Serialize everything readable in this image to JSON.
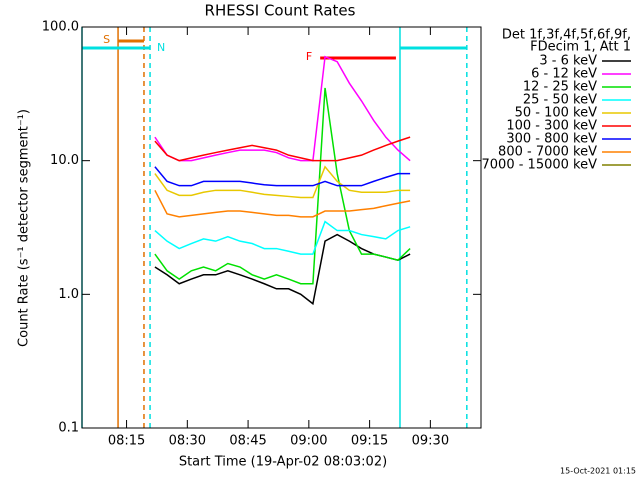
{
  "chart_data": {
    "type": "line",
    "title": "RHESSI Count Rates",
    "x_label": "Start Time (19-Apr-02 08:03:02)",
    "y_label": "Count Rate (s⁻¹ detector segment⁻¹)",
    "footer": "15-Oct-2021 01:15",
    "legend_title": [
      "Det 1f,3f,4f,5f,6f,9f,",
      "FDecim 1, Att 1"
    ],
    "legend": "upper right outside",
    "log_y": true,
    "xlim": [
      4,
      102.5
    ],
    "xticks": [
      {
        "value": 15,
        "label": "08:15"
      },
      {
        "value": 30,
        "label": "08:30"
      },
      {
        "value": 45,
        "label": "08:45"
      },
      {
        "value": 60,
        "label": "09:00"
      },
      {
        "value": 75,
        "label": "09:15"
      },
      {
        "value": 90,
        "label": "09:30"
      }
    ],
    "ylim": [
      0.1,
      100
    ],
    "yticks": [
      {
        "value": 0.1,
        "label": "0.1"
      },
      {
        "value": 1,
        "label": "1.0"
      },
      {
        "value": 10,
        "label": "10.0"
      },
      {
        "value": 100,
        "label": "100.0"
      }
    ],
    "x": [
      22,
      25,
      28,
      31,
      34,
      37,
      40,
      43,
      46,
      49,
      52,
      55,
      58,
      61,
      64,
      67,
      70,
      73,
      76,
      79,
      82,
      85
    ],
    "series": [
      {
        "name": "3 - 6 keV",
        "color": "#000000",
        "values": [
          1.6,
          1.4,
          1.2,
          1.3,
          1.4,
          1.4,
          1.5,
          1.4,
          1.3,
          1.2,
          1.1,
          1.1,
          1.0,
          0.85,
          2.5,
          2.8,
          2.5,
          2.2,
          2.0,
          1.9,
          1.8,
          2.0
        ]
      },
      {
        "name": "6 - 12 keV",
        "color": "#ff00ff",
        "values": [
          15,
          11,
          10,
          10,
          10.5,
          11,
          11.5,
          12,
          12,
          12,
          11.5,
          10.5,
          10,
          10,
          60,
          55,
          38,
          28,
          20,
          15,
          12,
          10
        ]
      },
      {
        "name": "12 - 25 keV",
        "color": "#00e000",
        "values": [
          2.0,
          1.5,
          1.3,
          1.5,
          1.6,
          1.5,
          1.7,
          1.6,
          1.4,
          1.3,
          1.4,
          1.3,
          1.2,
          1.2,
          35,
          8,
          3,
          2,
          2,
          1.9,
          1.8,
          2.2
        ]
      },
      {
        "name": "25 - 50 keV",
        "color": "#00ffff",
        "values": [
          3.0,
          2.5,
          2.2,
          2.4,
          2.6,
          2.5,
          2.7,
          2.5,
          2.4,
          2.2,
          2.2,
          2.1,
          2.0,
          2.0,
          3.5,
          3.0,
          3.0,
          2.8,
          2.7,
          2.6,
          3.0,
          3.2
        ]
      },
      {
        "name": "50 - 100 keV",
        "color": "#e8c800",
        "values": [
          8,
          6,
          5.5,
          5.5,
          5.8,
          6,
          6,
          6,
          5.8,
          5.6,
          5.5,
          5.4,
          5.3,
          5.3,
          9,
          7,
          6,
          5.8,
          5.8,
          5.8,
          6,
          6
        ]
      },
      {
        "name": "100 - 300 keV",
        "color": "#ff0000",
        "values": [
          14,
          11,
          10,
          10.5,
          11,
          11.5,
          12,
          12.5,
          13,
          12.5,
          12,
          11,
          10.5,
          10,
          10,
          10,
          10.5,
          11,
          12,
          13,
          14,
          15
        ]
      },
      {
        "name": "300 - 800 keV",
        "color": "#0000ff",
        "values": [
          9,
          7,
          6.5,
          6.5,
          7,
          7,
          7,
          7,
          6.8,
          6.6,
          6.5,
          6.5,
          6.5,
          6.5,
          7,
          6.5,
          6.5,
          6.5,
          7,
          7.5,
          8,
          8
        ]
      },
      {
        "name": "800 - 7000 keV",
        "color": "#ff8000",
        "values": [
          6,
          4,
          3.8,
          3.9,
          4,
          4.1,
          4.2,
          4.2,
          4.1,
          4,
          3.9,
          3.9,
          3.8,
          3.8,
          4.2,
          4.2,
          4.2,
          4.3,
          4.4,
          4.6,
          4.8,
          5
        ]
      },
      {
        "name": "7000 - 15000 keV",
        "color": "#808000",
        "values": [
          null,
          null,
          null,
          null,
          null,
          null,
          null,
          null,
          null,
          null,
          null,
          null,
          null,
          null,
          null,
          null,
          null,
          null,
          null,
          null,
          null,
          null
        ]
      }
    ],
    "intervals": [
      {
        "label": "S",
        "color": "#e07000",
        "level": 78.6,
        "label_at": "start",
        "bounds": true,
        "spans": [
          [
            12.9,
            19.3
          ]
        ]
      },
      {
        "label": "N",
        "color": "#00e0e0",
        "level": 69.6,
        "label_at": "end",
        "bounds": true,
        "spans": [
          [
            4,
            20.8
          ],
          [
            82.5,
            99
          ]
        ]
      },
      {
        "label": "F",
        "color": "#ff0000",
        "level": 58.6,
        "label_at": "start",
        "bounds": false,
        "spans": [
          [
            62.8,
            81.5
          ]
        ]
      }
    ]
  }
}
